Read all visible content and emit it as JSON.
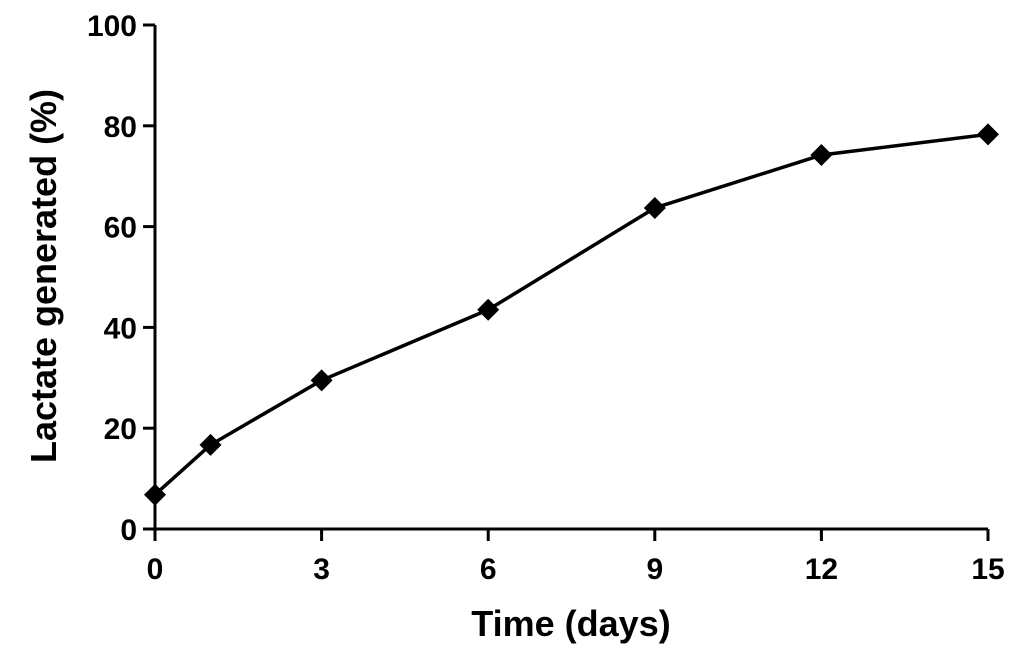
{
  "chart_data": {
    "type": "line",
    "title": "",
    "xlabel": "Time (days)",
    "ylabel": "Lactate generated (%)",
    "xlim": [
      0,
      15
    ],
    "ylim": [
      0,
      100
    ],
    "x_ticks": [
      0,
      3,
      6,
      9,
      12,
      15
    ],
    "y_ticks": [
      0,
      20,
      40,
      60,
      80,
      100
    ],
    "x_tick_labels": [
      "0",
      "3",
      "6",
      "9",
      "12",
      "15"
    ],
    "y_tick_labels": [
      "0",
      "20",
      "40",
      "60",
      "80",
      "100"
    ],
    "grid": false,
    "marker": "diamond",
    "series": [
      {
        "x": [
          0,
          1,
          3,
          6,
          9,
          12,
          15
        ],
        "y": [
          6.8,
          16.7,
          29.5,
          43.5,
          63.7,
          74.2,
          78.3
        ],
        "color": "#000000"
      }
    ]
  }
}
